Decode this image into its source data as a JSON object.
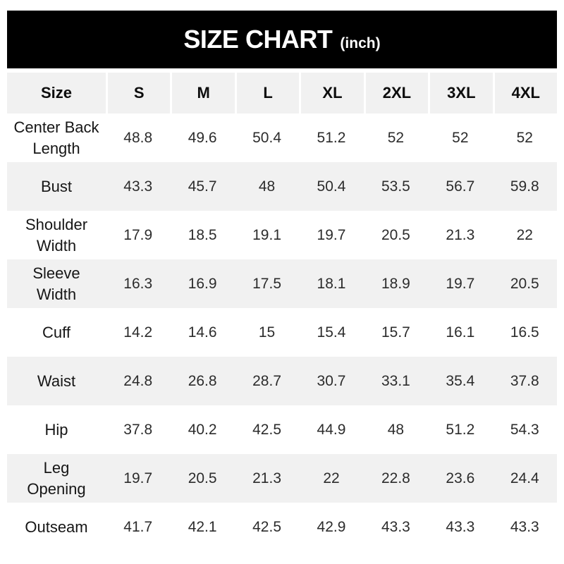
{
  "banner": {
    "title": "SIZE CHART",
    "unit_label": "(inch)"
  },
  "colors": {
    "banner_bg": "#000000",
    "banner_text": "#ffffff",
    "row_stripe_bg": "#f1f1f1",
    "row_plain_bg": "#ffffff",
    "header_text": "#0d0d0d",
    "body_text": "#2c2c2c"
  },
  "chart_data": {
    "type": "table",
    "title": "SIZE CHART (inch)",
    "unit": "inch",
    "columns": [
      "Size",
      "S",
      "M",
      "L",
      "XL",
      "2XL",
      "3XL",
      "4XL"
    ],
    "rows": [
      {
        "label": "Center Back\nLength",
        "values": [
          48.8,
          49.6,
          50.4,
          51.2,
          52,
          52,
          52
        ]
      },
      {
        "label": "Bust",
        "values": [
          43.3,
          45.7,
          48,
          50.4,
          53.5,
          56.7,
          59.8
        ]
      },
      {
        "label": "Shoulder\nWidth",
        "values": [
          17.9,
          18.5,
          19.1,
          19.7,
          20.5,
          21.3,
          22
        ]
      },
      {
        "label": "Sleeve\nWidth",
        "values": [
          16.3,
          16.9,
          17.5,
          18.1,
          18.9,
          19.7,
          20.5
        ]
      },
      {
        "label": "Cuff",
        "values": [
          14.2,
          14.6,
          15,
          15.4,
          15.7,
          16.1,
          16.5
        ]
      },
      {
        "label": "Waist",
        "values": [
          24.8,
          26.8,
          28.7,
          30.7,
          33.1,
          35.4,
          37.8
        ]
      },
      {
        "label": "Hip",
        "values": [
          37.8,
          40.2,
          42.5,
          44.9,
          48,
          51.2,
          54.3
        ]
      },
      {
        "label": "Leg\nOpening",
        "values": [
          19.7,
          20.5,
          21.3,
          22,
          22.8,
          23.6,
          24.4
        ]
      },
      {
        "label": "Outseam",
        "values": [
          41.7,
          42.1,
          42.5,
          42.9,
          43.3,
          43.3,
          43.3
        ]
      }
    ]
  }
}
